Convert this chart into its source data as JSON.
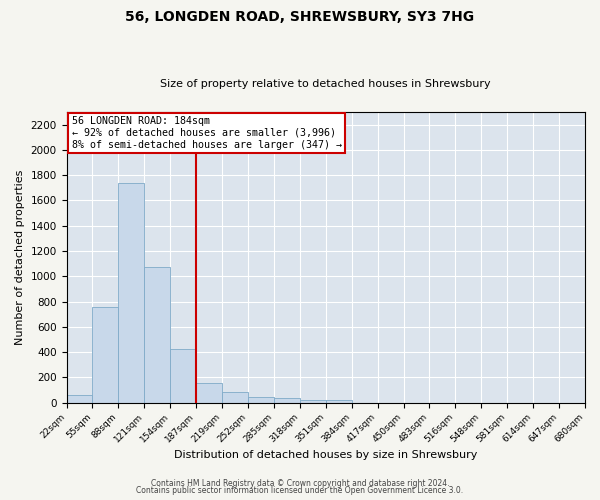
{
  "title": "56, LONGDEN ROAD, SHREWSBURY, SY3 7HG",
  "subtitle": "Size of property relative to detached houses in Shrewsbury",
  "xlabel": "Distribution of detached houses by size in Shrewsbury",
  "ylabel": "Number of detached properties",
  "bar_color": "#c8d8ea",
  "bar_edge_color": "#7faac8",
  "background_color": "#dce4ed",
  "grid_color": "#ffffff",
  "vline_color": "#cc0000",
  "annotation_line1": "56 LONGDEN ROAD: 184sqm",
  "annotation_line2": "← 92% of detached houses are smaller (3,996)",
  "annotation_line3": "8% of semi-detached houses are larger (347) →",
  "annotation_box_color": "#ffffff",
  "annotation_box_edge_color": "#cc0000",
  "bin_edges": [
    22,
    55,
    88,
    121,
    154,
    187,
    220,
    253,
    286,
    319,
    352,
    385,
    418,
    451,
    484,
    517,
    550,
    583,
    616,
    649,
    682
  ],
  "bin_labels": [
    "22sqm",
    "55sqm",
    "88sqm",
    "121sqm",
    "154sqm",
    "187sqm",
    "219sqm",
    "252sqm",
    "285sqm",
    "318sqm",
    "351sqm",
    "384sqm",
    "417sqm",
    "450sqm",
    "483sqm",
    "516sqm",
    "548sqm",
    "581sqm",
    "614sqm",
    "647sqm",
    "680sqm"
  ],
  "bin_heights": [
    60,
    760,
    1740,
    1075,
    425,
    155,
    82,
    45,
    35,
    22,
    18,
    0,
    0,
    0,
    0,
    0,
    0,
    0,
    0,
    0
  ],
  "ylim": [
    0,
    2300
  ],
  "yticks": [
    0,
    200,
    400,
    600,
    800,
    1000,
    1200,
    1400,
    1600,
    1800,
    2000,
    2200
  ],
  "footer_line1": "Contains HM Land Registry data © Crown copyright and database right 2024.",
  "footer_line2": "Contains public sector information licensed under the Open Government Licence 3.0.",
  "fig_bg": "#f5f5f0"
}
